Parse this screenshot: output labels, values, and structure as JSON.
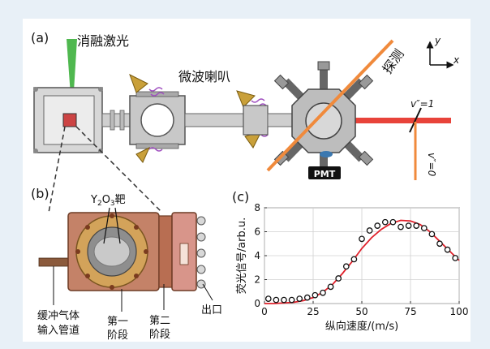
{
  "panel_a": {
    "label": "(a)",
    "ablation_laser_label": "消融激光",
    "microwave_horn_label": "微波喇叭",
    "probe_label": "探测",
    "state_upper_label": "v″=1",
    "state_lower_label": "v″=0",
    "pmt_label": "PMT",
    "axis_y_label": "y",
    "axis_x_label": "x"
  },
  "panel_b": {
    "label": "(b)",
    "target_label": "Y2O3靶",
    "buffer_gas_label_line1": "缓冲气体",
    "buffer_gas_label_line2": "输入管道",
    "stage1_label_line1": "第一",
    "stage1_label_line2": "阶段",
    "stage2_label_line1": "第二",
    "stage2_label_line2": "阶段",
    "outlet_label": "出口"
  },
  "panel_c": {
    "label": "(c)"
  },
  "colors": {
    "laser_red": "#e8433a",
    "probe_orange": "#f08a3c",
    "ablation_green": "#4fb84f",
    "horn_gold": "#c9a03a",
    "microwave_purple": "#a050c0",
    "body_copper": "#c48268",
    "fit_curve": "#e0202a"
  },
  "chart_data": {
    "type": "scatter",
    "title": "",
    "xlabel": "纵向速度/(m/s)",
    "ylabel": "荧光信号/arb.u.",
    "xlim": [
      0,
      100
    ],
    "ylim": [
      0,
      8
    ],
    "xticks": [
      0,
      25,
      50,
      75,
      100
    ],
    "yticks": [
      0,
      2,
      4,
      6,
      8
    ],
    "grid": true,
    "series": [
      {
        "kind": "points",
        "marker": "open-circle",
        "x": [
          2,
          6,
          10,
          14,
          18,
          22,
          26,
          30,
          34,
          38,
          42,
          46,
          50,
          54,
          58,
          62,
          66,
          70,
          74,
          78,
          82,
          86,
          90,
          94,
          98
        ],
        "y": [
          0.4,
          0.3,
          0.3,
          0.3,
          0.4,
          0.5,
          0.7,
          0.9,
          1.4,
          2.1,
          3.1,
          3.7,
          5.4,
          6.1,
          6.5,
          6.8,
          6.8,
          6.4,
          6.5,
          6.5,
          6.3,
          5.8,
          5.0,
          4.5,
          3.8
        ]
      },
      {
        "kind": "curve",
        "x": [
          0,
          5,
          10,
          15,
          20,
          25,
          30,
          35,
          40,
          45,
          50,
          55,
          60,
          65,
          70,
          75,
          80,
          85,
          90,
          95,
          100
        ],
        "y": [
          0.0,
          0.0,
          0.05,
          0.1,
          0.25,
          0.5,
          0.95,
          1.6,
          2.5,
          3.5,
          4.6,
          5.5,
          6.2,
          6.7,
          6.95,
          6.9,
          6.6,
          6.0,
          5.2,
          4.4,
          3.6
        ]
      }
    ]
  }
}
